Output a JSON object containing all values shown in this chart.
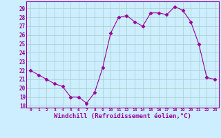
{
  "x": [
    0,
    1,
    2,
    3,
    4,
    5,
    6,
    7,
    8,
    9,
    10,
    11,
    12,
    13,
    14,
    15,
    16,
    17,
    18,
    19,
    20,
    21,
    22,
    23
  ],
  "y": [
    22,
    21.5,
    21,
    20.5,
    20.2,
    19,
    19,
    18.3,
    19.5,
    22.3,
    26.2,
    28,
    28.2,
    27.5,
    27,
    28.5,
    28.5,
    28.3,
    29.2,
    28.8,
    27.5,
    25,
    21.2,
    21
  ],
  "line_color": "#990099",
  "marker": "D",
  "marker_size": 2.5,
  "bg_color": "#cceeff",
  "grid_color": "#aacccc",
  "xlabel": "Windchill (Refroidissement éolien,°C)",
  "xlabel_fontsize": 6.5,
  "ylabel_ticks": [
    18,
    19,
    20,
    21,
    22,
    23,
    24,
    25,
    26,
    27,
    28,
    29
  ],
  "xtick_labels": [
    "0",
    "1",
    "2",
    "3",
    "4",
    "5",
    "6",
    "7",
    "8",
    "9",
    "10",
    "11",
    "12",
    "13",
    "14",
    "15",
    "16",
    "17",
    "18",
    "19",
    "20",
    "21",
    "22",
    "23"
  ],
  "ylim": [
    17.8,
    29.8
  ],
  "xlim": [
    -0.5,
    23.5
  ]
}
